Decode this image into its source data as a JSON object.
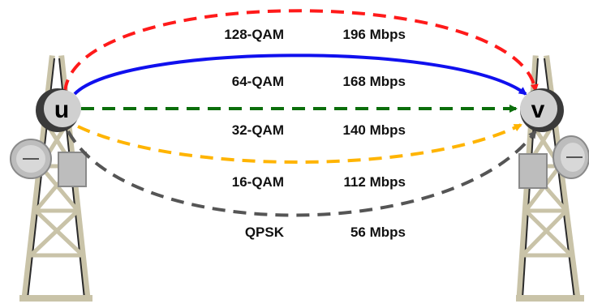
{
  "nodes": {
    "left": {
      "label": "u"
    },
    "right": {
      "label": "v"
    }
  },
  "links": [
    {
      "modulation": "128-QAM",
      "rate": "196 Mbps",
      "color": "#ff1a1a",
      "dashed": true
    },
    {
      "modulation": "64-QAM",
      "rate": "168 Mbps",
      "color": "#1010ee",
      "dashed": false
    },
    {
      "modulation": "32-QAM",
      "rate": "140 Mbps",
      "color": "#0b6e0b",
      "dashed": true
    },
    {
      "modulation": "16-QAM",
      "rate": "112 Mbps",
      "color": "#ffb400",
      "dashed": true
    },
    {
      "modulation": "QPSK",
      "rate": "56 Mbps",
      "color": "#555555",
      "dashed": true
    }
  ],
  "colors": {
    "tower": "#c9c3a8",
    "tower_dark": "#2a2a2a",
    "node_fill": "#d0d0d0",
    "node_shadow": "#3a3a3a"
  }
}
